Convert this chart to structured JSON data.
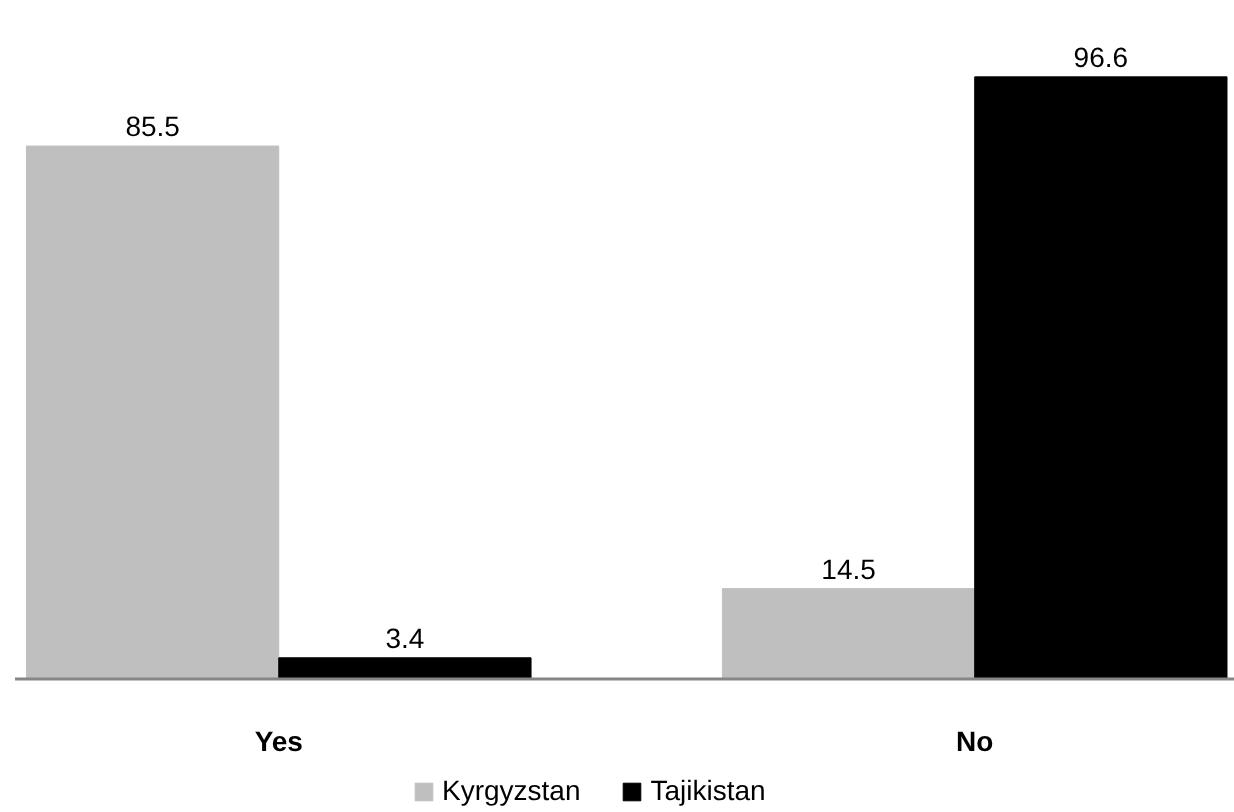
{
  "chart_data": {
    "type": "bar",
    "categories": [
      "Yes",
      "No"
    ],
    "series": [
      {
        "name": "Kyrgyzstan",
        "color": "#bfbfbf",
        "values": [
          85.5,
          14.5
        ]
      },
      {
        "name": "Tajikistan",
        "color": "#000000",
        "values": [
          3.4,
          96.6
        ]
      }
    ],
    "data_labels": true,
    "legend": "bottom",
    "grid": false,
    "tick_labels": "x"
  }
}
